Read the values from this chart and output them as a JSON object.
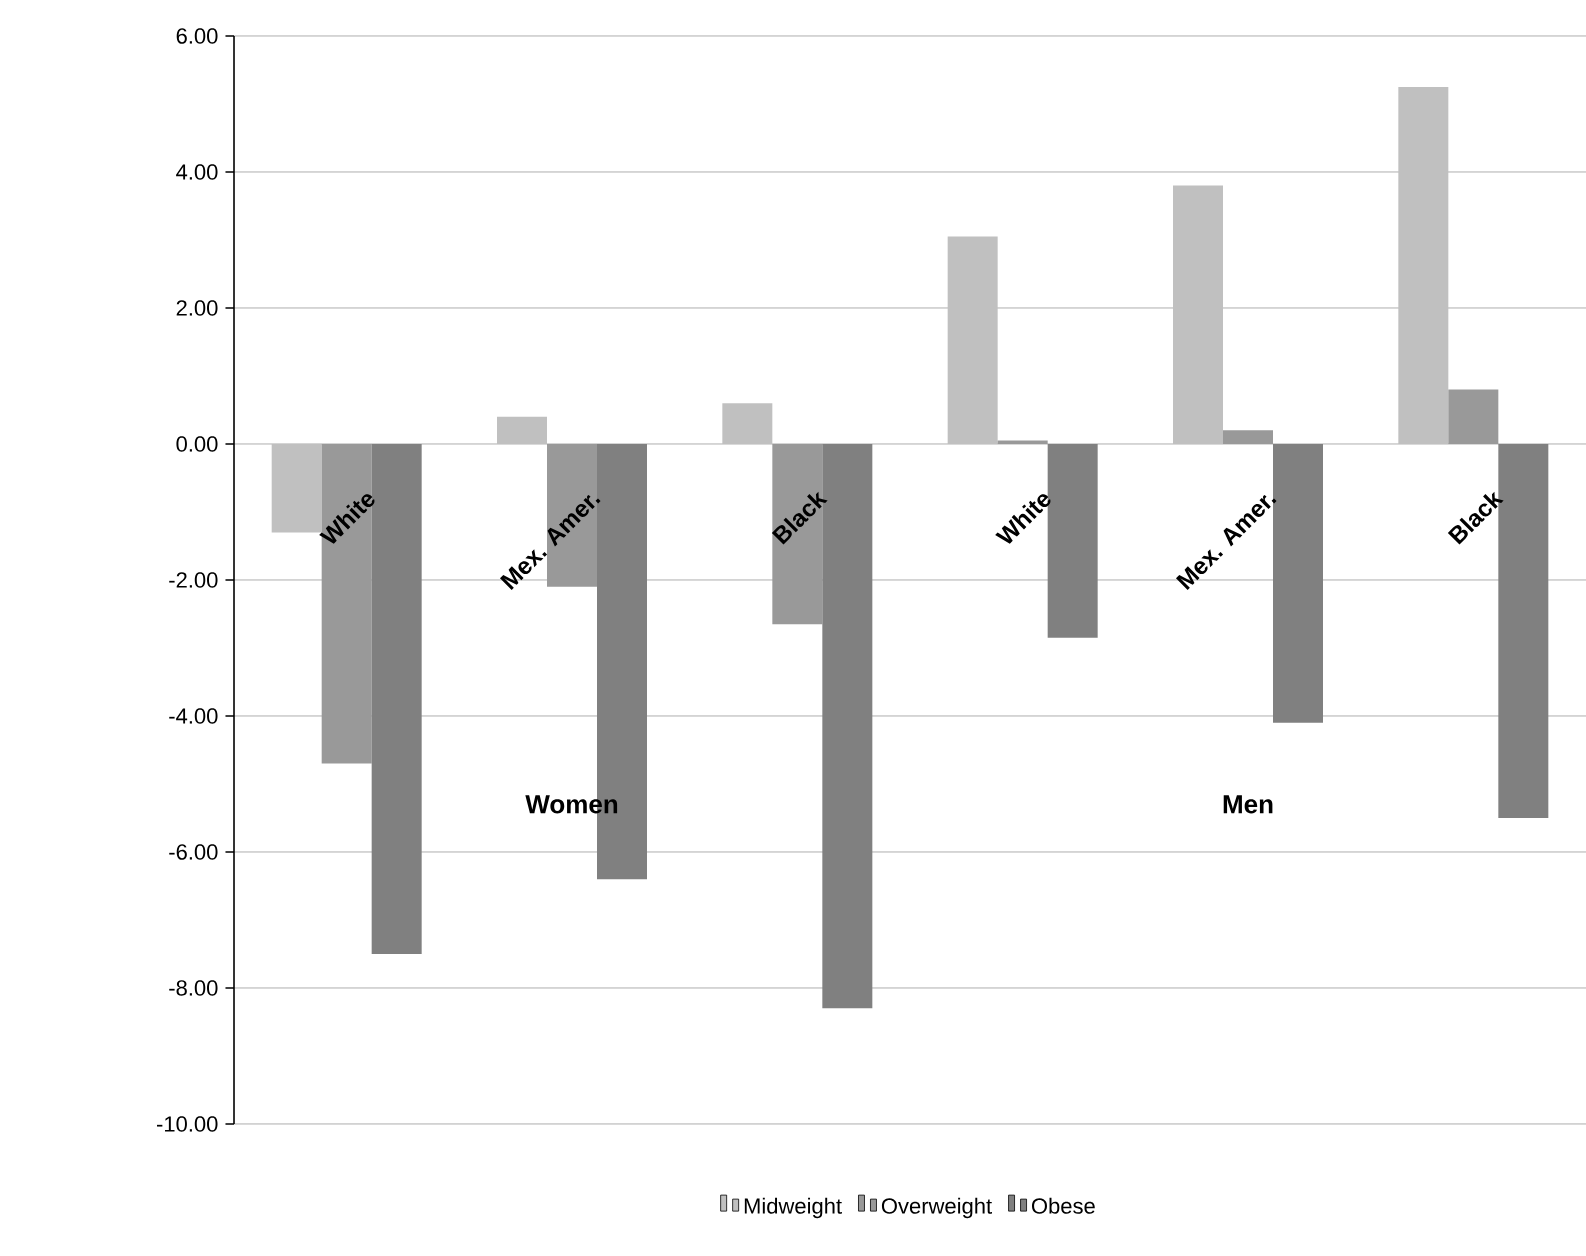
{
  "chart_data": {
    "type": "bar",
    "categories": [
      "White",
      "Mex. Amer.",
      "Black",
      "White",
      "Mex. Amer.",
      "Black"
    ],
    "series": [
      {
        "name": "Midweight",
        "color": "#c0c0c0",
        "values": [
          -1.3,
          0.4,
          0.6,
          3.05,
          3.8,
          5.25
        ]
      },
      {
        "name": "Overweight",
        "color": "#999999",
        "values": [
          -4.7,
          -2.1,
          -2.65,
          0.05,
          0.2,
          0.8
        ]
      },
      {
        "name": "Obese",
        "color": "#808080",
        "values": [
          -7.5,
          -6.4,
          -8.3,
          -2.85,
          -4.1,
          -5.5
        ]
      }
    ],
    "annotations": [
      "Women",
      "Men"
    ],
    "ylim": [
      -10,
      6
    ],
    "yticks": [
      {
        "value": -10,
        "label": "-10.00"
      },
      {
        "value": -8,
        "label": "-8.00"
      },
      {
        "value": -6,
        "label": "-6.00"
      },
      {
        "value": -4,
        "label": "-4.00"
      },
      {
        "value": -2,
        "label": "-2.00"
      },
      {
        "value": 0,
        "label": "0.00"
      },
      {
        "value": 2,
        "label": "2.00"
      },
      {
        "value": 4,
        "label": "4.00"
      },
      {
        "value": 6,
        "label": "6.00"
      }
    ],
    "grid": "y",
    "legend": "bottom"
  }
}
